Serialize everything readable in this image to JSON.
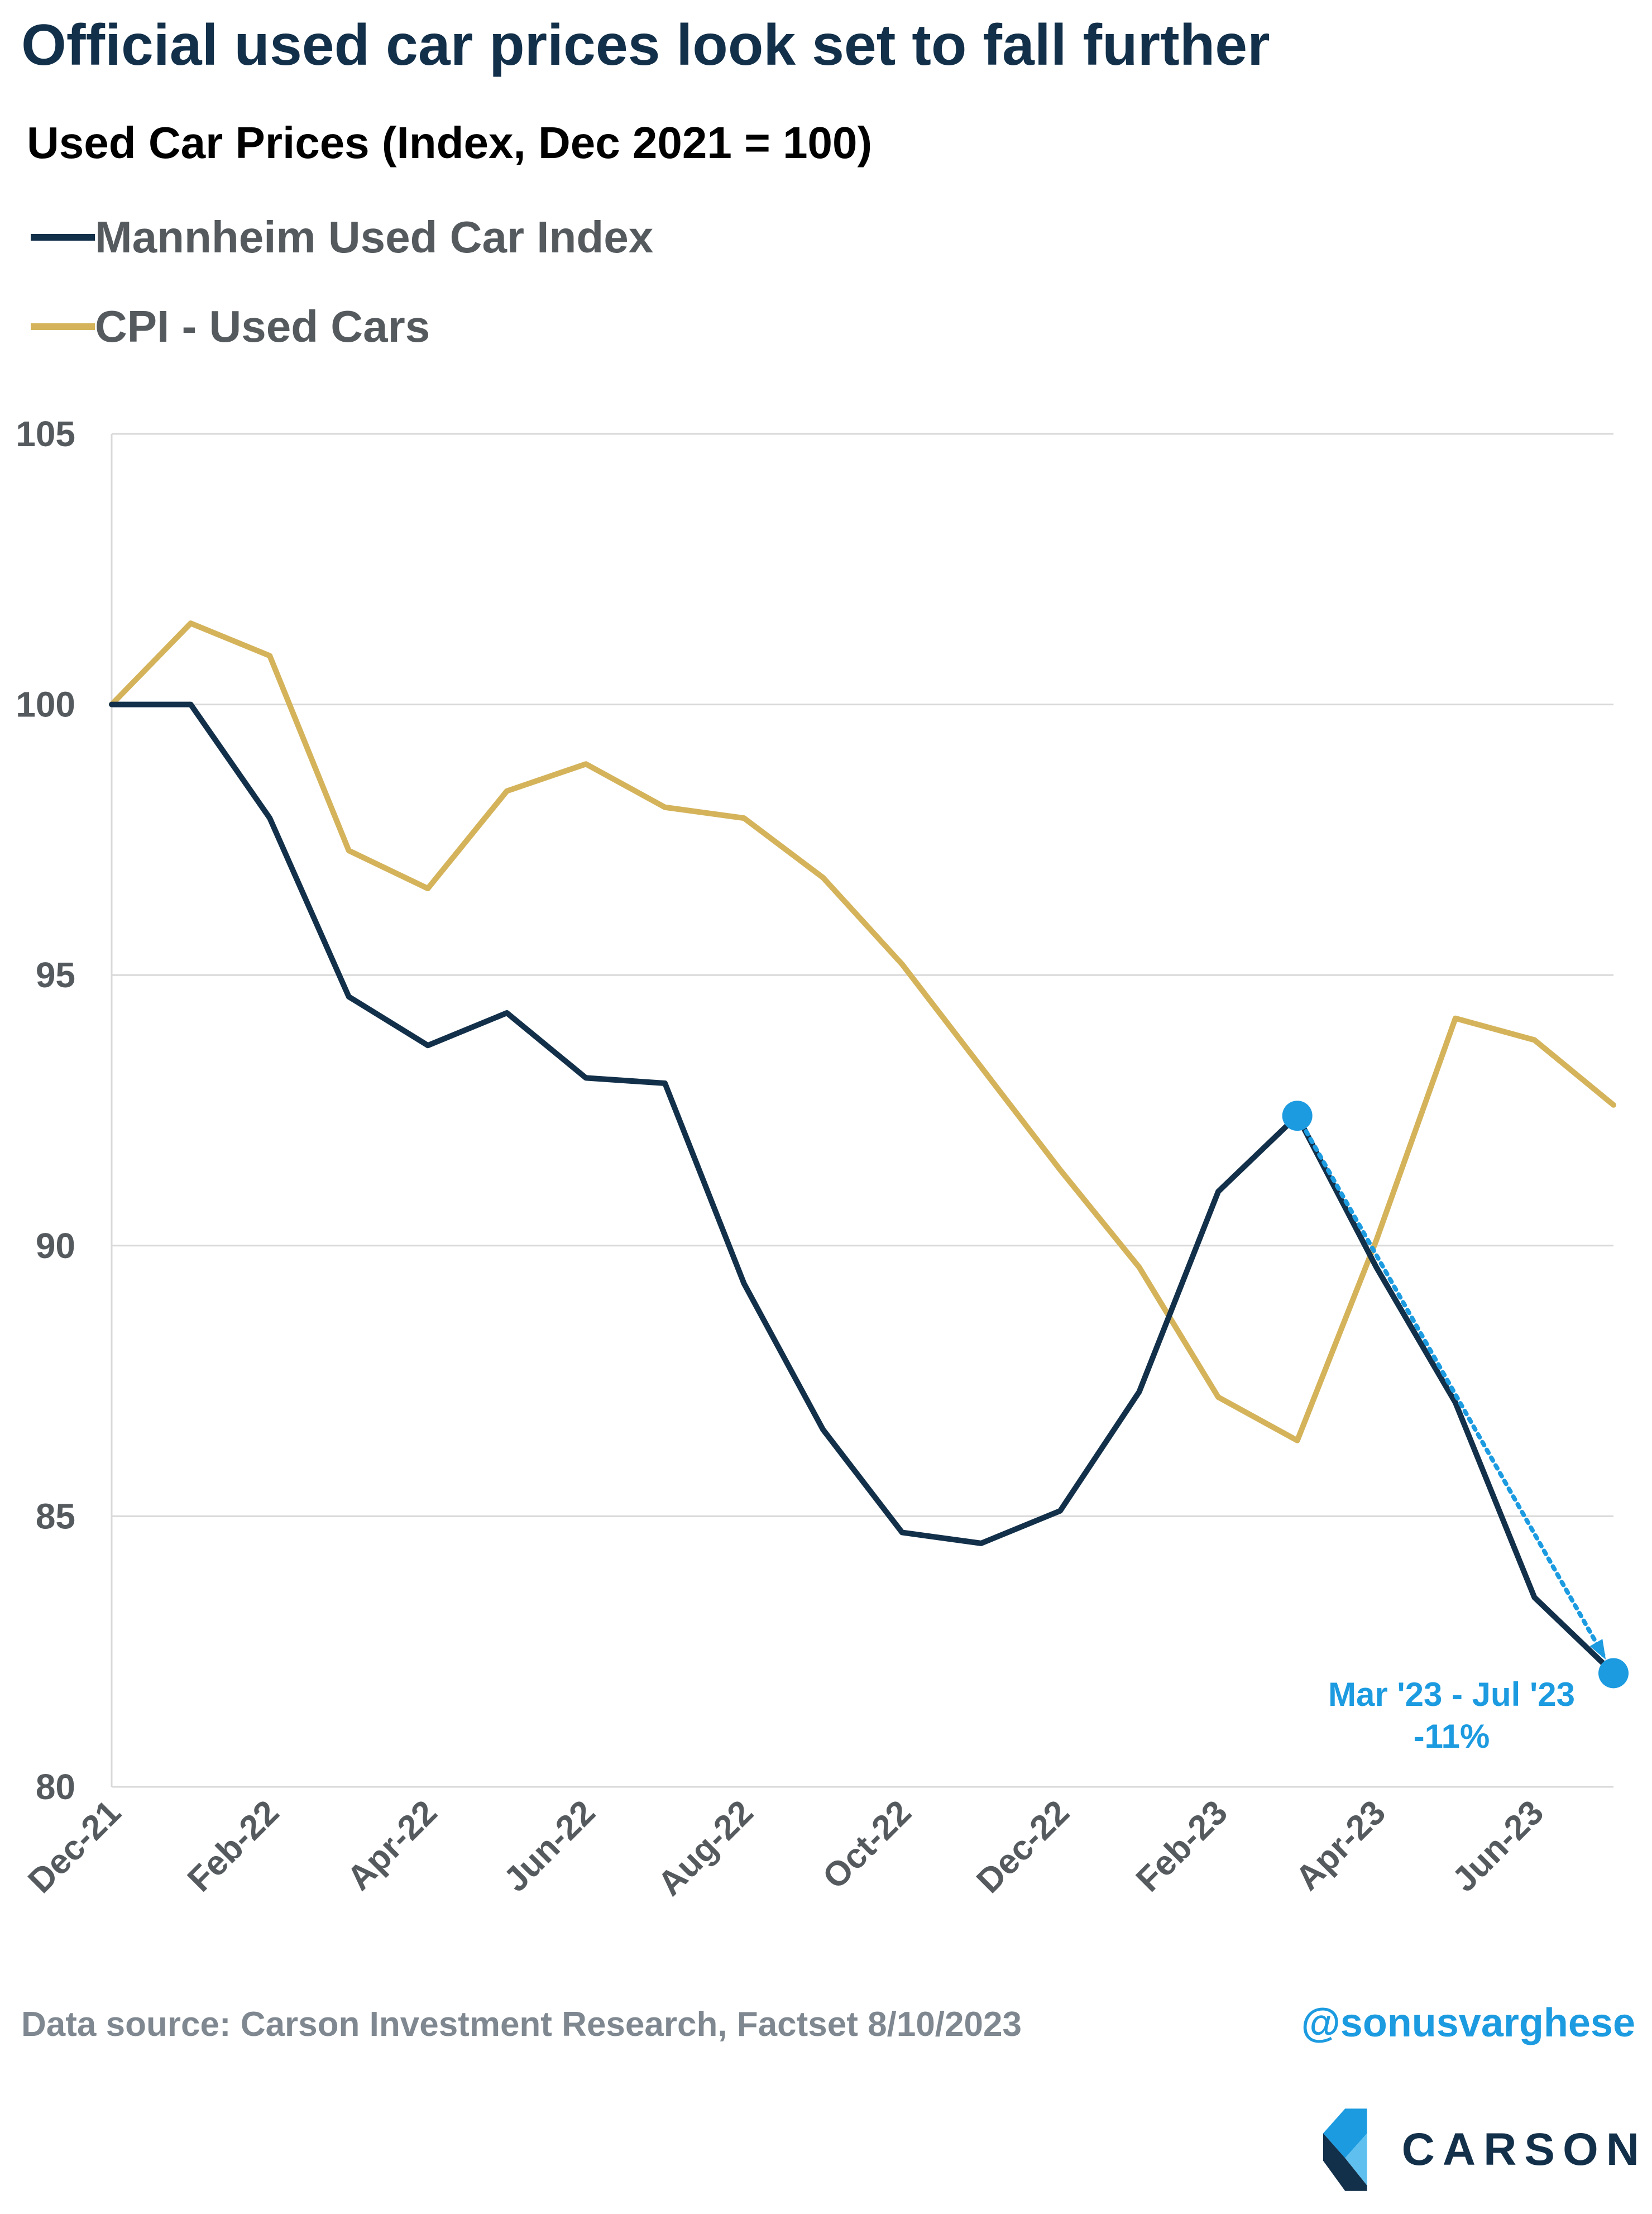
{
  "header": {
    "title": "Official used car prices look set to fall further",
    "subtitle": "Used Car Prices (Index, Dec 2021 = 100)"
  },
  "legend": [
    {
      "label": "Mannheim Used Car Index",
      "color": "#13304a"
    },
    {
      "label": "CPI - Used Cars",
      "color": "#d4b35a"
    }
  ],
  "chart_data": {
    "type": "line",
    "title": "Used Car Prices (Index, Dec 2021 = 100)",
    "x": [
      "Dec-21",
      "Jan-22",
      "Feb-22",
      "Mar-22",
      "Apr-22",
      "May-22",
      "Jun-22",
      "Jul-22",
      "Aug-22",
      "Sep-22",
      "Oct-22",
      "Nov-22",
      "Dec-22",
      "Jan-23",
      "Feb-23",
      "Mar-23",
      "Apr-23",
      "May-23",
      "Jun-23",
      "Jul-23"
    ],
    "x_tick_labels": [
      "Dec-21",
      "Feb-22",
      "Apr-22",
      "Jun-22",
      "Aug-22",
      "Oct-22",
      "Dec-22",
      "Feb-23",
      "Apr-23",
      "Jun-23"
    ],
    "ylim": [
      80,
      105
    ],
    "y_ticks": [
      80,
      85,
      90,
      95,
      100,
      105
    ],
    "grid": true,
    "series": [
      {
        "name": "Mannheim Used Car Index",
        "color": "#13304a",
        "values": [
          100.0,
          100.0,
          97.9,
          94.6,
          93.7,
          94.3,
          93.1,
          93.0,
          89.3,
          86.6,
          84.7,
          84.5,
          85.1,
          87.3,
          91.0,
          92.4,
          89.6,
          87.1,
          83.5,
          82.1
        ]
      },
      {
        "name": "CPI - Used Cars",
        "color": "#d4b35a",
        "values": [
          100.0,
          101.5,
          100.9,
          97.3,
          96.6,
          98.4,
          98.9,
          98.1,
          97.9,
          96.8,
          95.2,
          93.3,
          91.4,
          89.6,
          87.2,
          86.4,
          90.1,
          94.2,
          93.8,
          92.6
        ]
      }
    ],
    "annotation": {
      "from_index": 15,
      "to_index": 19,
      "line1": "Mar '23 - Jul '23",
      "line2": "-11%",
      "color": "#1c9be0"
    }
  },
  "footer": {
    "source": "Data source: Carson Investment Research, Factset   8/10/2023",
    "handle": "@sonusvarghese",
    "logo_text": "CARSON"
  }
}
